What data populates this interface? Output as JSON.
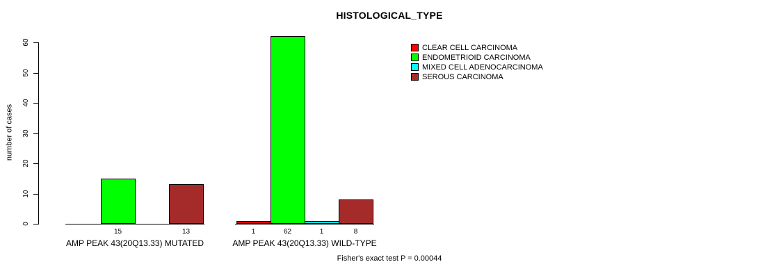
{
  "chart_data": {
    "type": "bar",
    "title": "HISTOLOGICAL_TYPE",
    "ylabel": "number of cases",
    "ylim": [
      0,
      60
    ],
    "yticks": [
      0,
      10,
      20,
      30,
      40,
      50,
      60
    ],
    "grid": false,
    "legend_position": "top-right",
    "series": [
      {
        "name": "CLEAR CELL CARCINOMA",
        "color": "#FF0000"
      },
      {
        "name": "ENDOMETRIOID CARCINOMA",
        "color": "#00FF00"
      },
      {
        "name": "MIXED CELL ADENOCARCINOMA",
        "color": "#00FFFF"
      },
      {
        "name": "SEROUS CARCINOMA",
        "color": "#A52A2A"
      }
    ],
    "groups": [
      {
        "label": "AMP PEAK 43(20Q13.33) MUTATED",
        "values": [
          0,
          15,
          0,
          13
        ],
        "count_labels": [
          "",
          "15",
          "",
          "13"
        ]
      },
      {
        "label": "AMP PEAK 43(20Q13.33) WILD-TYPE",
        "values": [
          1,
          62,
          1,
          8
        ],
        "count_labels": [
          "1",
          "62",
          "1",
          "8"
        ]
      }
    ],
    "annotation": "Fisher's exact test P = 0.00044"
  }
}
